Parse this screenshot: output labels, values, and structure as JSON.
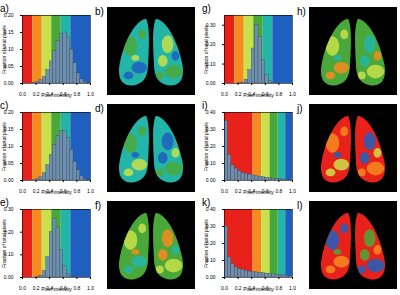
{
  "chart_data": [
    {
      "type": "histogram",
      "title": "a)",
      "x_label": "Pixel intensity",
      "y_label": "Fraction of total pixels",
      "bins": [
        0,
        0.05,
        0.1,
        0.15,
        0.2,
        0.25,
        0.3,
        0.35,
        0.4,
        0.45,
        0.5,
        0.55,
        0.6,
        0.65,
        0.7,
        0.75,
        0.8,
        0.85,
        0.9,
        0.95,
        1
      ],
      "counts": [
        0,
        0,
        0,
        0.002,
        0.005,
        0.01,
        0.02,
        0.04,
        0.065,
        0.095,
        0.125,
        0.145,
        0.15,
        0.135,
        0.1,
        0.06,
        0.03,
        0.012,
        0.005,
        0.001
      ],
      "color": "#6f8fb0",
      "xlim": [
        0,
        1
      ],
      "xticks": [
        0,
        0.2,
        0.4,
        0.6,
        0.8,
        1
      ],
      "ylim": [
        0,
        0.2
      ],
      "yticks": [
        0,
        0.05,
        0.1,
        0.15,
        0.2
      ],
      "bands": [
        {
          "from": 0,
          "to": 0.15,
          "color": "#e8221a"
        },
        {
          "from": 0.15,
          "to": 0.29,
          "color": "#f58a1f"
        },
        {
          "from": 0.29,
          "to": 0.43,
          "color": "#c8e04a"
        },
        {
          "from": 0.43,
          "to": 0.57,
          "color": "#4aa83a"
        },
        {
          "from": 0.57,
          "to": 0.71,
          "color": "#23b5a8"
        },
        {
          "from": 0.71,
          "to": 1,
          "color": "#1f5fbf"
        }
      ]
    },
    {
      "type": "histogram",
      "title": "c)",
      "x_label": "Pixel intensity",
      "y_label": "Fraction of total pixels",
      "bins": [
        0,
        0.05,
        0.1,
        0.15,
        0.2,
        0.25,
        0.3,
        0.35,
        0.4,
        0.45,
        0.5,
        0.55,
        0.6,
        0.65,
        0.7,
        0.75,
        0.8,
        0.85,
        0.9,
        0.95,
        1
      ],
      "counts": [
        0,
        0,
        0,
        0.001,
        0.004,
        0.01,
        0.022,
        0.045,
        0.075,
        0.105,
        0.13,
        0.145,
        0.145,
        0.125,
        0.09,
        0.055,
        0.03,
        0.012,
        0.004,
        0.001
      ],
      "color": "#6f8fb0",
      "xlim": [
        0,
        1
      ],
      "xticks": [
        0,
        0.2,
        0.4,
        0.6,
        0.8,
        1
      ],
      "ylim": [
        0,
        0.2
      ],
      "yticks": [
        0,
        0.05,
        0.1,
        0.15,
        0.2
      ],
      "bands": [
        {
          "from": 0,
          "to": 0.15,
          "color": "#e8221a"
        },
        {
          "from": 0.15,
          "to": 0.29,
          "color": "#f58a1f"
        },
        {
          "from": 0.29,
          "to": 0.43,
          "color": "#c8e04a"
        },
        {
          "from": 0.43,
          "to": 0.57,
          "color": "#4aa83a"
        },
        {
          "from": 0.57,
          "to": 0.71,
          "color": "#23b5a8"
        },
        {
          "from": 0.71,
          "to": 1,
          "color": "#1f5fbf"
        }
      ]
    },
    {
      "type": "histogram",
      "title": "e)",
      "x_label": "Pixel intensity",
      "y_label": "Fraction of total pixels",
      "bins": [
        0,
        0.05,
        0.1,
        0.15,
        0.2,
        0.25,
        0.3,
        0.35,
        0.4,
        0.45,
        0.5,
        0.55,
        0.6,
        0.65,
        0.7,
        0.75,
        0.8,
        0.85,
        0.9,
        0.95,
        1
      ],
      "counts": [
        0,
        0,
        0,
        0,
        0.002,
        0.008,
        0.03,
        0.09,
        0.2,
        0.26,
        0.22,
        0.12,
        0.05,
        0.015,
        0.004,
        0.001,
        0,
        0,
        0,
        0
      ],
      "color": "#6f8fb0",
      "xlim": [
        0,
        1
      ],
      "xticks": [
        0,
        0.2,
        0.4,
        0.6,
        0.8,
        1
      ],
      "ylim": [
        0,
        0.3
      ],
      "yticks": [
        0,
        0.1,
        0.2,
        0.3
      ],
      "bands": [
        {
          "from": 0,
          "to": 0.15,
          "color": "#e8221a"
        },
        {
          "from": 0.15,
          "to": 0.29,
          "color": "#f58a1f"
        },
        {
          "from": 0.29,
          "to": 0.43,
          "color": "#c8e04a"
        },
        {
          "from": 0.43,
          "to": 0.57,
          "color": "#4aa83a"
        },
        {
          "from": 0.57,
          "to": 0.71,
          "color": "#23b5a8"
        },
        {
          "from": 0.71,
          "to": 1,
          "color": "#1f5fbf"
        }
      ]
    },
    {
      "type": "histogram",
      "title": "g)",
      "x_label": "Pixel intensity",
      "y_label": "Fraction of total pixels",
      "bins": [
        0,
        0.05,
        0.1,
        0.15,
        0.2,
        0.25,
        0.3,
        0.35,
        0.4,
        0.45,
        0.5,
        0.55,
        0.6,
        0.65,
        0.7,
        0.75,
        0.8,
        0.85,
        0.9,
        0.95,
        1
      ],
      "counts": [
        0,
        0,
        0,
        0,
        0.001,
        0.005,
        0.02,
        0.07,
        0.18,
        0.3,
        0.24,
        0.12,
        0.045,
        0.013,
        0.004,
        0.001,
        0,
        0,
        0,
        0
      ],
      "color": "#6f8fb0",
      "xlim": [
        0,
        1
      ],
      "xticks": [
        0,
        0.2,
        0.4,
        0.6,
        0.8,
        1
      ],
      "ylim": [
        0,
        0.35
      ],
      "yticks": [
        0,
        0.1,
        0.2,
        0.3
      ],
      "bands": [
        {
          "from": 0,
          "to": 0.15,
          "color": "#e8221a"
        },
        {
          "from": 0.15,
          "to": 0.29,
          "color": "#f58a1f"
        },
        {
          "from": 0.29,
          "to": 0.43,
          "color": "#c8e04a"
        },
        {
          "from": 0.43,
          "to": 0.57,
          "color": "#4aa83a"
        },
        {
          "from": 0.57,
          "to": 0.71,
          "color": "#23b5a8"
        },
        {
          "from": 0.71,
          "to": 1,
          "color": "#1f5fbf"
        }
      ]
    },
    {
      "type": "histogram",
      "title": "i)",
      "x_label": "Pixel intensity",
      "y_label": "Fraction of total pixels",
      "bins": [
        0,
        0.05,
        0.1,
        0.15,
        0.2,
        0.25,
        0.3,
        0.35,
        0.4,
        0.45,
        0.5,
        0.55,
        0.6,
        0.65,
        0.7,
        0.75,
        0.8,
        0.85,
        0.9,
        0.95,
        1
      ],
      "counts": [
        0.35,
        0.15,
        0.09,
        0.07,
        0.055,
        0.045,
        0.04,
        0.035,
        0.03,
        0.025,
        0.022,
        0.019,
        0.016,
        0.013,
        0.011,
        0.009,
        0.007,
        0.005,
        0.003,
        0.002
      ],
      "color": "#6f8fb0",
      "xlim": [
        0,
        1
      ],
      "xticks": [
        0,
        0.2,
        0.4,
        0.6,
        0.8,
        1
      ],
      "ylim": [
        0,
        0.4
      ],
      "yticks": [
        0,
        0.1,
        0.2,
        0.3,
        0.4
      ],
      "bands": [
        {
          "from": 0,
          "to": 0.42,
          "color": "#e8221a"
        },
        {
          "from": 0.42,
          "to": 0.55,
          "color": "#f58a1f"
        },
        {
          "from": 0.55,
          "to": 0.67,
          "color": "#c8e04a"
        },
        {
          "from": 0.67,
          "to": 0.79,
          "color": "#4aa83a"
        },
        {
          "from": 0.79,
          "to": 0.9,
          "color": "#23b5a8"
        },
        {
          "from": 0.9,
          "to": 1,
          "color": "#1f5fbf"
        }
      ]
    },
    {
      "type": "histogram",
      "title": "k)",
      "x_label": "Pixel intensity",
      "y_label": "Fraction of total pixels",
      "bins": [
        0,
        0.05,
        0.1,
        0.15,
        0.2,
        0.25,
        0.3,
        0.35,
        0.4,
        0.45,
        0.5,
        0.55,
        0.6,
        0.65,
        0.7,
        0.75,
        0.8,
        0.85,
        0.9,
        0.95,
        1
      ],
      "counts": [
        0.3,
        0.12,
        0.08,
        0.06,
        0.05,
        0.045,
        0.04,
        0.035,
        0.032,
        0.03,
        0.028,
        0.025,
        0.023,
        0.02,
        0.018,
        0.016,
        0.014,
        0.012,
        0.01,
        0.008
      ],
      "color": "#6f8fb0",
      "xlim": [
        0,
        1
      ],
      "xticks": [
        0,
        0.2,
        0.4,
        0.6,
        0.8,
        1
      ],
      "ylim": [
        0,
        0.4
      ],
      "yticks": [
        0,
        0.1,
        0.2,
        0.3,
        0.4
      ],
      "bands": [
        {
          "from": 0,
          "to": 0.42,
          "color": "#e8221a"
        },
        {
          "from": 0.42,
          "to": 0.55,
          "color": "#f58a1f"
        },
        {
          "from": 0.55,
          "to": 0.67,
          "color": "#c8e04a"
        },
        {
          "from": 0.67,
          "to": 0.79,
          "color": "#4aa83a"
        },
        {
          "from": 0.79,
          "to": 0.9,
          "color": "#23b5a8"
        },
        {
          "from": 0.9,
          "to": 1,
          "color": "#1f5fbf"
        }
      ]
    }
  ],
  "images": [
    {
      "label": "b)",
      "colors": [
        "#23b5a8",
        "#4aa83a",
        "#1f5fbf",
        "#c8e04a"
      ]
    },
    {
      "label": "d)",
      "colors": [
        "#23b5a8",
        "#4aa83a",
        "#c8e04a",
        "#1f5fbf"
      ]
    },
    {
      "label": "f)",
      "colors": [
        "#4aa83a",
        "#c8e04a",
        "#23b5a8",
        "#f58a1f"
      ]
    },
    {
      "label": "h)",
      "colors": [
        "#4aa83a",
        "#c8e04a",
        "#f58a1f",
        "#23b5a8"
      ]
    },
    {
      "label": "j)",
      "colors": [
        "#e8221a",
        "#f58a1f",
        "#c8e04a",
        "#1f5fbf"
      ]
    },
    {
      "label": "l)",
      "colors": [
        "#e8221a",
        "#1f5fbf",
        "#f58a1f",
        "#4aa83a"
      ]
    }
  ]
}
